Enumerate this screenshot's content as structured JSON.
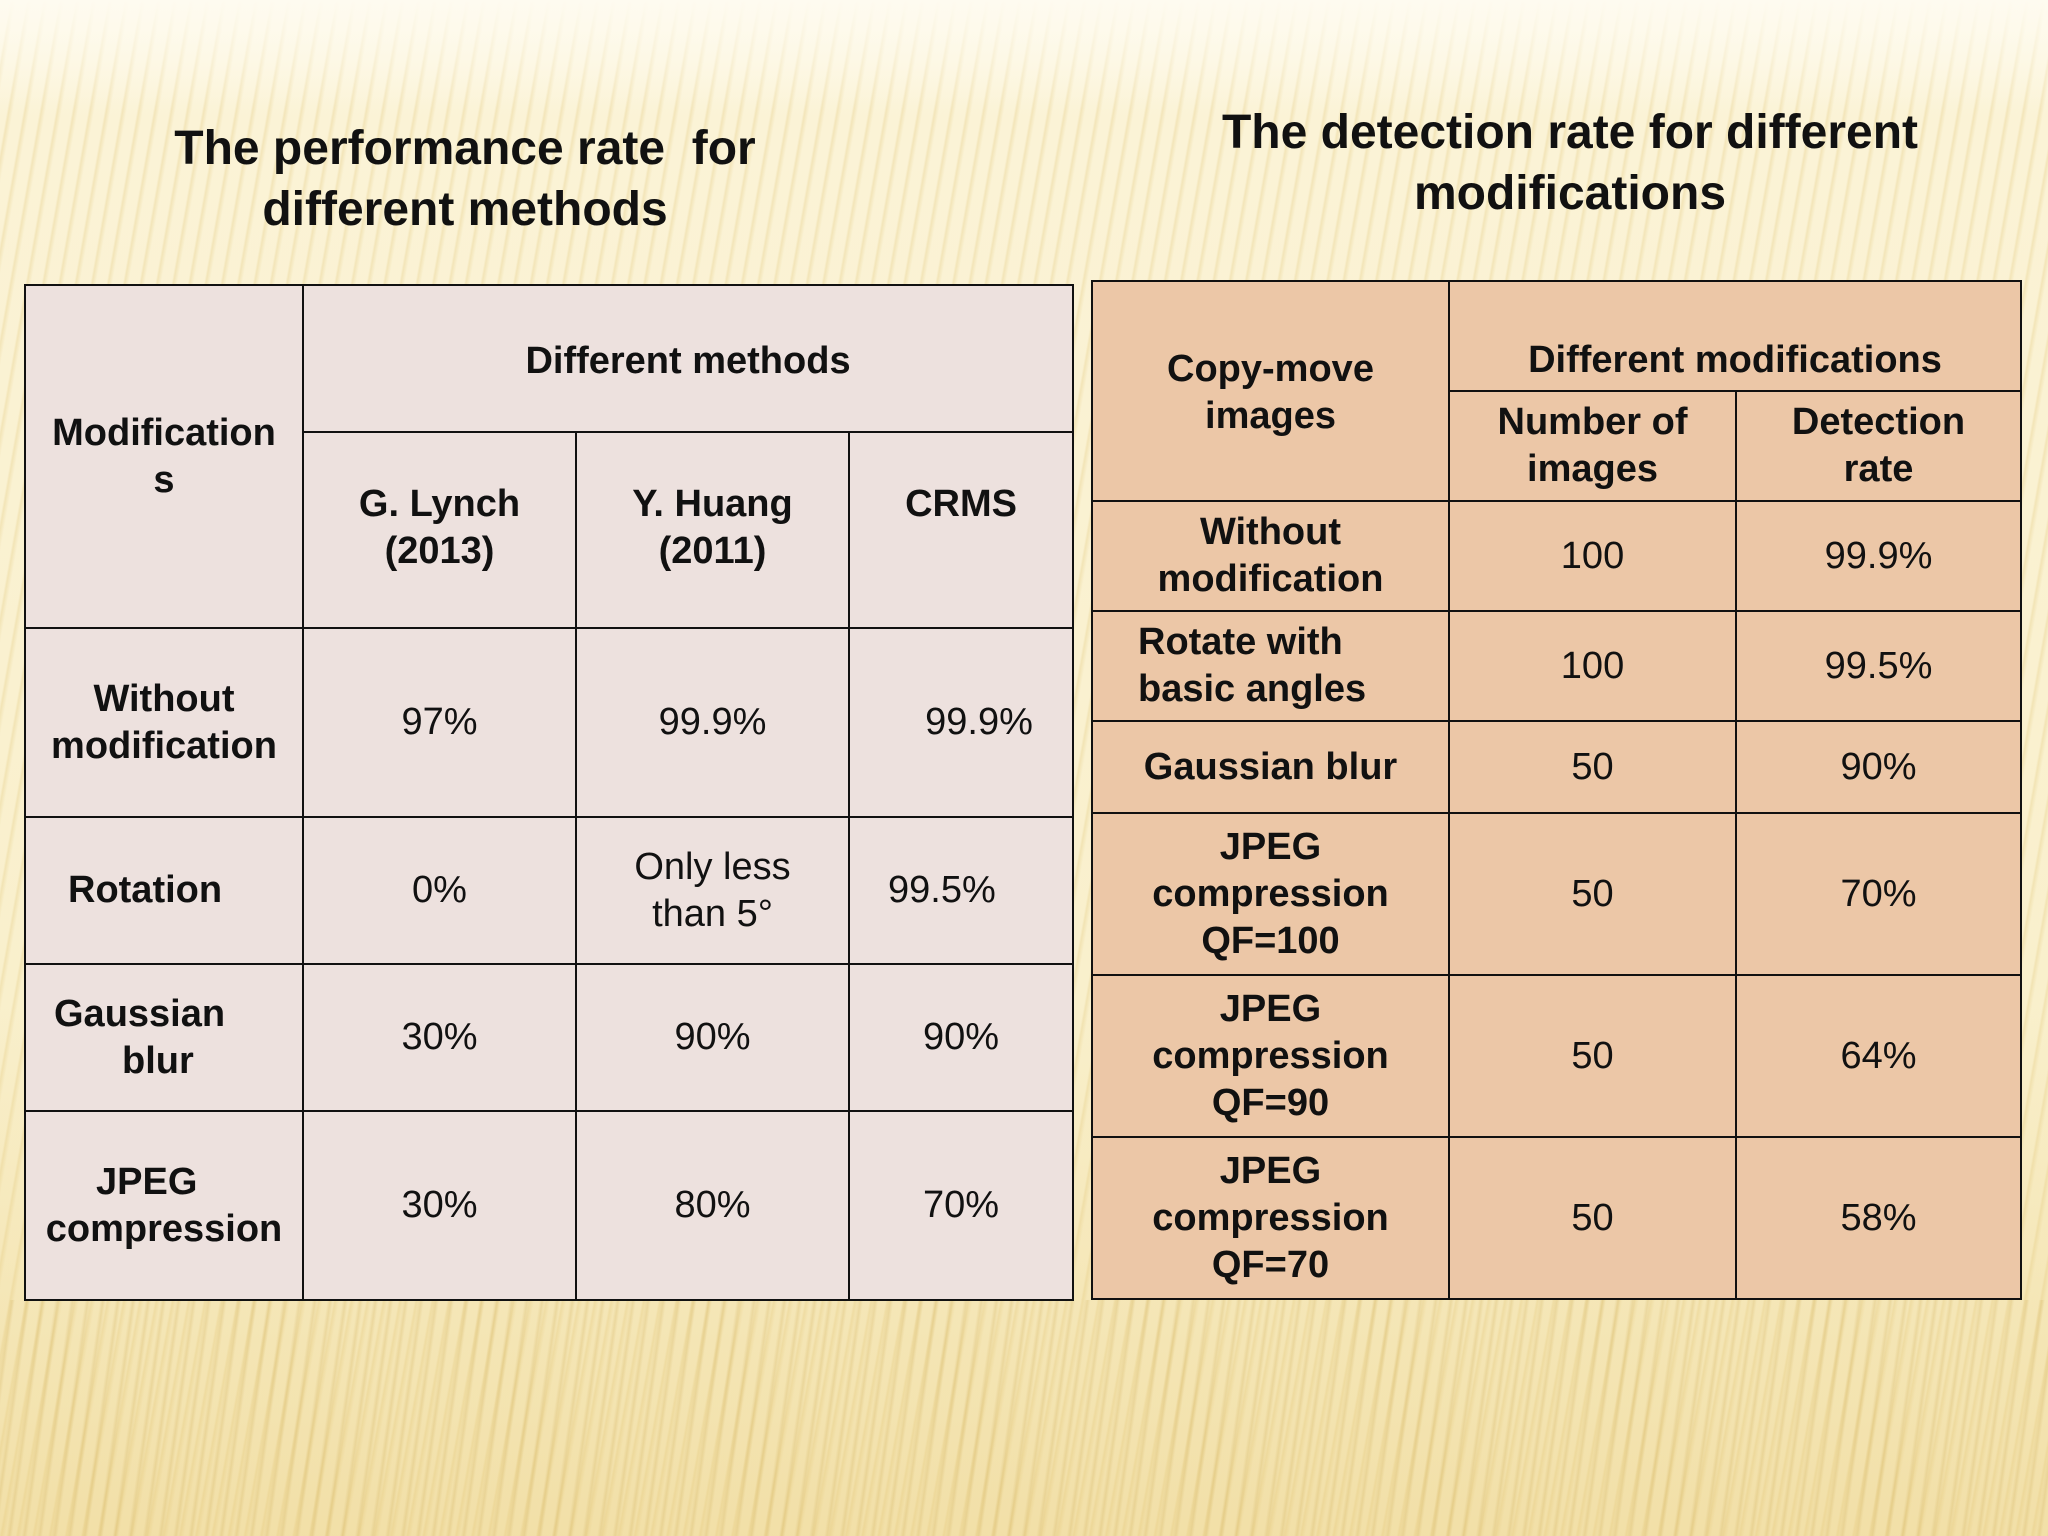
{
  "left": {
    "title_line1": "The performance rate  for",
    "title_line2": "different methods",
    "header": {
      "row_label_line1": "Modification",
      "row_label_line2": "s",
      "group": "Different methods",
      "methods": [
        {
          "line1": "G. Lynch",
          "line2": "(2013)"
        },
        {
          "line1": "Y. Huang",
          "line2": "(2011)"
        },
        {
          "line1": "CRMS",
          "line2": ""
        }
      ]
    },
    "rows": [
      {
        "label1": "Without",
        "label2": "modification",
        "values": [
          "97%",
          "99.9%",
          "99.9%"
        ]
      },
      {
        "label1": "Rotation",
        "label2": "",
        "values": [
          "0%",
          "Only less than 5°",
          "99.5%"
        ],
        "v2_line1": "Only less",
        "v2_line2": "than 5°"
      },
      {
        "label1": "Gaussian",
        "label2": "blur",
        "values": [
          "30%",
          "90%",
          "90%"
        ]
      },
      {
        "label1": "JPEG",
        "label2": "compression",
        "values": [
          "30%",
          "80%",
          "70%"
        ]
      }
    ]
  },
  "right": {
    "title_line1": "The detection rate for different",
    "title_line2": "modifications",
    "header": {
      "row_label_line1": "Copy-move",
      "row_label_line2": "images",
      "group": "Different modifications",
      "col1_line1": "Number of",
      "col1_line2": "images",
      "col2_line1": "Detection",
      "col2_line2": "rate"
    },
    "rows": [
      {
        "label1": "Without",
        "label2": "modification",
        "label3": "",
        "number": "100",
        "rate": "99.9%"
      },
      {
        "label1": "Rotate with",
        "label2": "basic angles",
        "label3": "",
        "number": "100",
        "rate": "99.5%"
      },
      {
        "label1": "Gaussian blur",
        "label2": "",
        "label3": "",
        "number": "50",
        "rate": "90%"
      },
      {
        "label1": "JPEG",
        "label2": "compression",
        "label3": "QF=100",
        "number": "50",
        "rate": "70%"
      },
      {
        "label1": "JPEG",
        "label2": "compression",
        "label3": "QF=90",
        "number": "50",
        "rate": "64%"
      },
      {
        "label1": "JPEG",
        "label2": "compression",
        "label3": "QF=70",
        "number": "50",
        "rate": "58%"
      }
    ]
  },
  "colors": {
    "left_table_bg": "#ede1de",
    "right_table_bg": "#ecc7a7",
    "border": "#111111"
  }
}
